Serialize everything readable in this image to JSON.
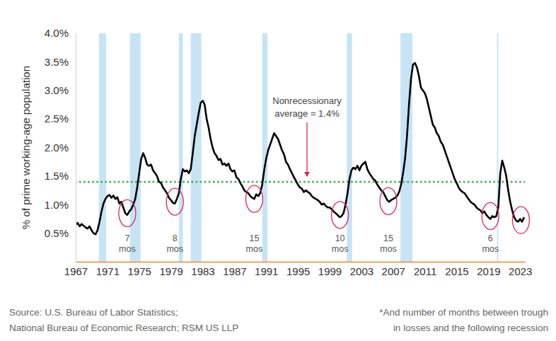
{
  "chart_data": {
    "type": "line",
    "y_label": "% of prime working-age population",
    "xlim": [
      1967,
      2023.6
    ],
    "xticks": [
      1967,
      1971,
      1975,
      1979,
      1983,
      1987,
      1991,
      1995,
      1999,
      2003,
      2007,
      2011,
      2015,
      2019,
      2023
    ],
    "ylim": [
      0,
      4.0
    ],
    "yticks": [
      {
        "value": 0.5,
        "label": "0.5%"
      },
      {
        "value": 1.0,
        "label": "1.0%"
      },
      {
        "value": 1.5,
        "label": "1.5%"
      },
      {
        "value": 2.0,
        "label": "2.0%"
      },
      {
        "value": 2.5,
        "label": "2.5%"
      },
      {
        "value": 3.0,
        "label": "3.0%"
      },
      {
        "value": 3.5,
        "label": "3.5%"
      },
      {
        "value": 4.0,
        "label": "4.0%"
      }
    ],
    "grid": false,
    "x": [
      1967,
      1967.25,
      1967.5,
      1967.75,
      1968,
      1968.25,
      1968.5,
      1968.75,
      1969,
      1969.25,
      1969.5,
      1969.75,
      1970,
      1970.25,
      1970.5,
      1970.75,
      1971,
      1971.25,
      1971.5,
      1971.75,
      1972,
      1972.25,
      1972.5,
      1972.75,
      1973,
      1973.25,
      1973.5,
      1973.75,
      1974,
      1974.25,
      1974.5,
      1974.75,
      1975,
      1975.25,
      1975.5,
      1975.75,
      1976,
      1976.25,
      1976.5,
      1976.75,
      1977,
      1977.25,
      1977.5,
      1977.75,
      1978,
      1978.25,
      1978.5,
      1978.75,
      1979,
      1979.25,
      1979.5,
      1979.75,
      1980,
      1980.25,
      1980.5,
      1980.75,
      1981,
      1981.25,
      1981.5,
      1981.75,
      1982,
      1982.25,
      1982.5,
      1982.75,
      1983,
      1983.25,
      1983.5,
      1983.75,
      1984,
      1984.25,
      1984.5,
      1984.75,
      1985,
      1985.25,
      1985.5,
      1985.75,
      1986,
      1986.25,
      1986.5,
      1986.75,
      1987,
      1987.25,
      1987.5,
      1987.75,
      1988,
      1988.25,
      1988.5,
      1988.75,
      1989,
      1989.25,
      1989.5,
      1989.75,
      1990,
      1990.25,
      1990.5,
      1990.75,
      1991,
      1991.25,
      1991.5,
      1991.75,
      1992,
      1992.25,
      1992.5,
      1992.75,
      1993,
      1993.25,
      1993.5,
      1993.75,
      1994,
      1994.25,
      1994.5,
      1994.75,
      1995,
      1995.25,
      1995.5,
      1995.75,
      1996,
      1996.25,
      1996.5,
      1996.75,
      1997,
      1997.25,
      1997.5,
      1997.75,
      1998,
      1998.25,
      1998.5,
      1998.75,
      1999,
      1999.25,
      1999.5,
      1999.75,
      2000,
      2000.25,
      2000.5,
      2000.75,
      2001,
      2001.25,
      2001.5,
      2001.75,
      2002,
      2002.25,
      2002.5,
      2002.75,
      2003,
      2003.25,
      2003.5,
      2003.75,
      2004,
      2004.25,
      2004.5,
      2004.75,
      2005,
      2005.25,
      2005.5,
      2005.75,
      2006,
      2006.25,
      2006.5,
      2006.75,
      2007,
      2007.25,
      2007.5,
      2007.75,
      2008,
      2008.25,
      2008.5,
      2008.75,
      2009,
      2009.25,
      2009.5,
      2009.75,
      2010,
      2010.25,
      2010.5,
      2010.75,
      2011,
      2011.25,
      2011.5,
      2011.75,
      2012,
      2012.25,
      2012.5,
      2012.75,
      2013,
      2013.25,
      2013.5,
      2013.75,
      2014,
      2014.25,
      2014.5,
      2014.75,
      2015,
      2015.25,
      2015.5,
      2015.75,
      2016,
      2016.25,
      2016.5,
      2016.75,
      2017,
      2017.25,
      2017.5,
      2017.75,
      2018,
      2018.25,
      2018.5,
      2018.75,
      2019,
      2019.25,
      2019.5,
      2019.75,
      2020,
      2020.25,
      2020.5,
      2020.75,
      2021,
      2021.25,
      2021.5,
      2021.75,
      2022,
      2022.25,
      2022.5,
      2022.75,
      2023,
      2023.25,
      2023.5
    ],
    "series": [
      {
        "color": "#000000",
        "line_style": "solid",
        "values": [
          0.65,
          0.68,
          0.62,
          0.66,
          0.63,
          0.6,
          0.58,
          0.62,
          0.55,
          0.5,
          0.48,
          0.55,
          0.7,
          0.88,
          1.02,
          1.1,
          1.15,
          1.17,
          1.12,
          1.16,
          1.1,
          1.13,
          1.02,
          1.05,
          0.95,
          0.85,
          0.82,
          0.88,
          0.92,
          1.0,
          1.1,
          1.3,
          1.55,
          1.8,
          1.9,
          1.82,
          1.7,
          1.68,
          1.7,
          1.6,
          1.55,
          1.5,
          1.4,
          1.38,
          1.3,
          1.25,
          1.2,
          1.12,
          1.08,
          1.03,
          1.02,
          1.1,
          1.2,
          1.45,
          1.62,
          1.58,
          1.6,
          1.55,
          1.62,
          1.9,
          2.2,
          2.4,
          2.6,
          2.78,
          2.82,
          2.75,
          2.5,
          2.35,
          2.15,
          2.0,
          1.9,
          1.85,
          1.78,
          1.8,
          1.7,
          1.72,
          1.68,
          1.72,
          1.62,
          1.58,
          1.6,
          1.48,
          1.45,
          1.38,
          1.32,
          1.25,
          1.22,
          1.2,
          1.15,
          1.12,
          1.1,
          1.18,
          1.15,
          1.2,
          1.35,
          1.6,
          1.8,
          1.95,
          2.05,
          2.15,
          2.25,
          2.2,
          2.15,
          2.05,
          1.95,
          1.88,
          1.75,
          1.7,
          1.62,
          1.55,
          1.48,
          1.42,
          1.35,
          1.3,
          1.28,
          1.22,
          1.25,
          1.22,
          1.2,
          1.15,
          1.12,
          1.1,
          1.08,
          1.05,
          1.0,
          1.02,
          0.98,
          0.95,
          0.95,
          0.92,
          0.88,
          0.85,
          0.82,
          0.78,
          0.8,
          0.85,
          1.0,
          1.2,
          1.45,
          1.6,
          1.65,
          1.62,
          1.68,
          1.6,
          1.68,
          1.72,
          1.75,
          1.62,
          1.55,
          1.5,
          1.45,
          1.42,
          1.35,
          1.3,
          1.25,
          1.22,
          1.15,
          1.08,
          1.05,
          1.08,
          1.1,
          1.12,
          1.15,
          1.22,
          1.35,
          1.55,
          1.8,
          2.2,
          2.75,
          3.2,
          3.45,
          3.48,
          3.4,
          3.25,
          3.05,
          3.0,
          2.95,
          2.85,
          2.7,
          2.55,
          2.4,
          2.35,
          2.25,
          2.2,
          2.1,
          2.05,
          1.95,
          1.85,
          1.75,
          1.65,
          1.55,
          1.45,
          1.38,
          1.3,
          1.25,
          1.22,
          1.2,
          1.15,
          1.1,
          1.05,
          1.02,
          1.0,
          0.95,
          0.92,
          0.9,
          0.85,
          0.88,
          0.82,
          0.78,
          0.75,
          0.8,
          0.78,
          0.8,
          0.95,
          1.55,
          1.77,
          1.65,
          1.5,
          1.25,
          1.05,
          0.9,
          0.78,
          0.72,
          0.7,
          0.75,
          0.7,
          0.78
        ]
      }
    ],
    "recessions": {
      "color": "#c6e4f5",
      "periods": [
        {
          "start": 1969.92,
          "end": 1970.83
        },
        {
          "start": 1973.83,
          "end": 1975.17
        },
        {
          "start": 1980.0,
          "end": 1980.5
        },
        {
          "start": 1981.5,
          "end": 1982.83
        },
        {
          "start": 1990.5,
          "end": 1991.17
        },
        {
          "start": 2001.17,
          "end": 2001.83
        },
        {
          "start": 2007.92,
          "end": 2009.42
        },
        {
          "start": 2020.08,
          "end": 2020.25
        }
      ]
    },
    "average": {
      "value": 1.4,
      "color": "#3db54a",
      "line_style": "dotted",
      "label": [
        "Nonrecessionary",
        "average = 1.4%"
      ]
    },
    "troughs": {
      "color": "#e0245e",
      "unit_label": "mos",
      "points": [
        {
          "x": 1973.5,
          "y": 0.85,
          "months": 7
        },
        {
          "x": 1979.5,
          "y": 1.05,
          "months": 8
        },
        {
          "x": 1989.5,
          "y": 1.1,
          "months": 15
        },
        {
          "x": 2000.3,
          "y": 0.82,
          "months": 10
        },
        {
          "x": 2006.4,
          "y": 1.06,
          "months": 15
        },
        {
          "x": 2019.25,
          "y": 0.8,
          "months": 6
        },
        {
          "x": 2023.1,
          "y": 0.73
        }
      ]
    },
    "source": [
      "Source: U.S. Bureau of Labor Statistics;",
      "National Bureau of Economic Research; RSM US LLP"
    ],
    "footnote": [
      "*And number of months between trough",
      "in losses and the following recession"
    ]
  }
}
